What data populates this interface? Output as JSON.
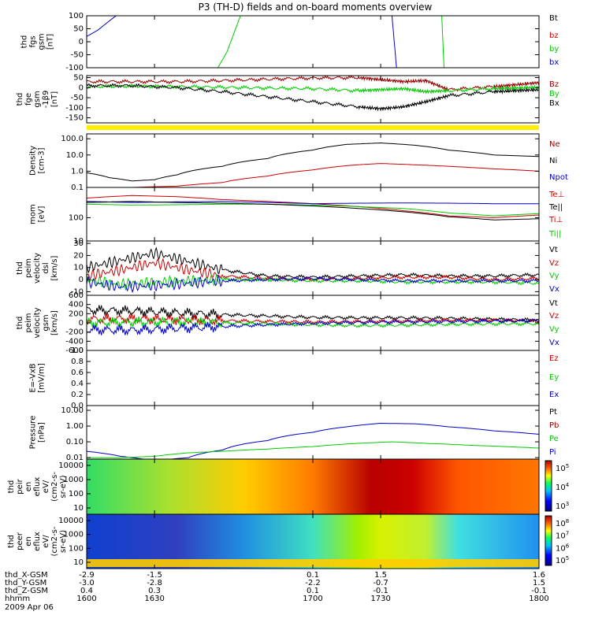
{
  "title": "P3 (TH-D) fields and on-board moments overview",
  "colors": {
    "black": "#000000",
    "red": "#cc0000",
    "green": "#00cc00",
    "blue": "#0000cc",
    "yellow": "#ffee00",
    "darkred": "#990000"
  },
  "chart_data": [
    {
      "type": "line",
      "panel": "fgs",
      "ylabel": [
        "thd",
        "fgs",
        "gsm",
        "[nT]"
      ],
      "yticks": [
        "100",
        "50",
        "0",
        "-50",
        "-100"
      ],
      "ylim": [
        -100,
        100
      ],
      "legend": [
        {
          "label": "Bt",
          "color": "black"
        },
        {
          "label": "bz",
          "color": "red"
        },
        {
          "label": "by",
          "color": "green"
        },
        {
          "label": "bx",
          "color": "blue"
        }
      ],
      "series": [
        {
          "name": "bx",
          "color": "blue",
          "x": [
            1600,
            1605,
            1610,
            1613
          ],
          "y": [
            20,
            45,
            80,
            100
          ]
        },
        {
          "name": "by",
          "color": "green",
          "x": [
            1658,
            1662,
            1668
          ],
          "y": [
            -100,
            -40,
            100
          ]
        },
        {
          "name": "bx",
          "color": "blue",
          "x": [
            1735,
            1737
          ],
          "y": [
            100,
            -100
          ]
        },
        {
          "name": "by",
          "color": "green",
          "x": [
            1757,
            1758
          ],
          "y": [
            100,
            -100
          ]
        }
      ]
    },
    {
      "type": "line",
      "panel": "fge",
      "ylabel": [
        "thd",
        "fge",
        "gsm",
        "-1β9",
        "[nT]"
      ],
      "yticks": [
        "50",
        "0",
        "-50",
        "-100",
        "-150"
      ],
      "ylim": [
        -175,
        60
      ],
      "legend": [
        {
          "label": "Bz",
          "color": "darkred"
        },
        {
          "label": "By",
          "color": "green"
        },
        {
          "label": "Bx",
          "color": "black"
        }
      ],
      "series": [
        {
          "name": "Bz",
          "color": "darkred",
          "x": [
            1600,
            1620,
            1640,
            1660,
            1680,
            1700,
            1720,
            1730,
            1740,
            1750,
            1760,
            1780,
            1790,
            1800
          ],
          "y": [
            30,
            30,
            30,
            35,
            42,
            48,
            50,
            40,
            30,
            35,
            -10,
            5,
            15,
            25
          ]
        },
        {
          "name": "By",
          "color": "green",
          "x": [
            1600,
            1620,
            1640,
            1660,
            1680,
            1700,
            1720,
            1730,
            1740,
            1750,
            1760,
            1780,
            1790,
            1800
          ],
          "y": [
            5,
            8,
            5,
            2,
            -2,
            -5,
            -15,
            -10,
            -5,
            -20,
            -15,
            -5,
            -2,
            2
          ]
        },
        {
          "name": "Bx",
          "color": "black",
          "x": [
            1600,
            1620,
            1640,
            1660,
            1680,
            1700,
            1720,
            1730,
            1740,
            1750,
            1760,
            1780,
            1790,
            1800
          ],
          "y": [
            10,
            10,
            0,
            -20,
            -45,
            -70,
            -95,
            -105,
            -95,
            -70,
            -40,
            -20,
            -15,
            -10
          ]
        }
      ]
    },
    {
      "type": "line",
      "panel": "density",
      "yscale": "log",
      "ylabel": [
        "Density",
        "[cm-3]"
      ],
      "yticks": [
        "100.0",
        "10.0",
        "1.0",
        "0.1"
      ],
      "ylim": [
        0.1,
        200
      ],
      "legend": [
        {
          "label": "Ne",
          "color": "darkred"
        },
        {
          "label": "Ni",
          "color": "black"
        },
        {
          "label": "Npot",
          "color": "blue"
        }
      ],
      "series": [
        {
          "name": "Ni",
          "color": "black",
          "x": [
            1600,
            1610,
            1620,
            1630,
            1640,
            1660,
            1680,
            1700,
            1715,
            1730,
            1745,
            1760,
            1780,
            1800
          ],
          "y": [
            0.8,
            0.4,
            0.25,
            0.3,
            0.6,
            2,
            6,
            20,
            45,
            55,
            40,
            20,
            10,
            8
          ]
        },
        {
          "name": "Ne",
          "color": "red",
          "x": [
            1600,
            1620,
            1640,
            1660,
            1680,
            1700,
            1720,
            1730,
            1745,
            1760,
            1780,
            1800
          ],
          "y": [
            0.1,
            0.1,
            0.12,
            0.2,
            0.5,
            1.2,
            2.5,
            3,
            2.5,
            2,
            1.4,
            1
          ]
        }
      ]
    },
    {
      "type": "line",
      "panel": "mom_temp",
      "yscale": "log",
      "ylabel": [
        "mom",
        "[eV]"
      ],
      "yticks": [
        "100",
        "10"
      ],
      "ylim": [
        10,
        2000
      ],
      "legend": [
        {
          "label": "Te⊥",
          "color": "red"
        },
        {
          "label": "Te||",
          "color": "black"
        },
        {
          "label": "Ti⊥",
          "color": "red"
        },
        {
          "label": "Ti||",
          "color": "green"
        }
      ],
      "series": [
        {
          "name": "Te⊥",
          "color": "red",
          "x": [
            1600,
            1620,
            1640,
            1660,
            1680,
            1700,
            1720,
            1740,
            1760,
            1780,
            1800
          ],
          "y": [
            700,
            900,
            800,
            600,
            500,
            400,
            300,
            200,
            120,
            100,
            130
          ]
        },
        {
          "name": "Ti⊥",
          "color": "blue",
          "x": [
            1600,
            1620,
            1640,
            1660,
            1680,
            1700,
            1720,
            1740,
            1760,
            1780,
            1800
          ],
          "y": [
            500,
            450,
            480,
            500,
            450,
            400,
            420,
            430,
            420,
            400,
            400
          ]
        },
        {
          "name": "Ti||",
          "color": "green",
          "x": [
            1600,
            1620,
            1640,
            1660,
            1680,
            1700,
            1720,
            1740,
            1760,
            1780,
            1800
          ],
          "y": [
            380,
            350,
            360,
            380,
            380,
            350,
            300,
            250,
            160,
            120,
            150
          ]
        },
        {
          "name": "Te||",
          "color": "black",
          "x": [
            1600,
            1620,
            1640,
            1660,
            1680,
            1700,
            1720,
            1740,
            1760,
            1780,
            1800
          ],
          "y": [
            450,
            500,
            450,
            420,
            380,
            320,
            250,
            180,
            110,
            80,
            90
          ]
        }
      ]
    },
    {
      "type": "line",
      "panel": "vel1",
      "ylabel": [
        "thd",
        "peim",
        "velocity",
        "dsl",
        "[km/s]"
      ],
      "yticks": [
        "30",
        "20",
        "10",
        "0",
        "-10"
      ],
      "ylim": [
        -13,
        32
      ],
      "legend": [
        {
          "label": "Vt",
          "color": "black"
        },
        {
          "label": "Vz",
          "color": "red"
        },
        {
          "label": "Vy",
          "color": "green"
        },
        {
          "label": "Vx",
          "color": "blue"
        }
      ],
      "series": [
        {
          "name": "Vt",
          "color": "black",
          "x": [
            1600,
            1615,
            1630,
            1645,
            1660,
            1680,
            1700,
            1720,
            1740,
            1760,
            1780,
            1800
          ],
          "y": [
            10,
            16,
            22,
            15,
            8,
            3,
            2,
            3,
            4,
            3,
            3,
            4
          ]
        },
        {
          "name": "Vz",
          "color": "red",
          "x": [
            1600,
            1615,
            1630,
            1645,
            1660,
            1680,
            1700,
            1720,
            1740,
            1760,
            1780,
            1800
          ],
          "y": [
            3,
            8,
            14,
            8,
            3,
            1,
            0,
            1,
            2,
            2,
            0,
            1
          ]
        },
        {
          "name": "Vy",
          "color": "green",
          "x": [
            1600,
            1615,
            1630,
            1645,
            1660,
            1680,
            1700,
            1720,
            1740,
            1760,
            1780,
            1800
          ],
          "y": [
            0,
            -4,
            -2,
            -1,
            0,
            0,
            -1,
            -1,
            -2,
            -2,
            -2,
            -3
          ]
        },
        {
          "name": "Vx",
          "color": "blue",
          "x": [
            1600,
            1615,
            1630,
            1645,
            1660,
            1680,
            1700,
            1720,
            1740,
            1760,
            1780,
            1800
          ],
          "y": [
            -2,
            -6,
            -5,
            -3,
            -1,
            0,
            1,
            0,
            -1,
            -1,
            -1,
            -1
          ]
        }
      ]
    },
    {
      "type": "line",
      "panel": "vel2",
      "ylabel": [
        "thd",
        "peim",
        "velocity",
        "gsm",
        "[km/s]"
      ],
      "yticks": [
        "600",
        "400",
        "200",
        "0",
        "-200",
        "-400",
        "-600"
      ],
      "ylim": [
        -600,
        600
      ],
      "legend": [
        {
          "label": "Vt",
          "color": "black"
        },
        {
          "label": "Vz",
          "color": "red"
        },
        {
          "label": "Vy",
          "color": "green"
        },
        {
          "label": "Vx",
          "color": "blue"
        }
      ],
      "series": [
        {
          "name": "Vt",
          "color": "black",
          "x": [
            1600,
            1620,
            1640,
            1660,
            1680,
            1700,
            1720,
            1740,
            1760,
            1780,
            1800
          ],
          "y": [
            280,
            260,
            220,
            180,
            150,
            120,
            110,
            110,
            100,
            80,
            60
          ]
        },
        {
          "name": "Vz",
          "color": "red",
          "x": [
            1600,
            1620,
            1640,
            1660,
            1680,
            1700,
            1720,
            1740,
            1760,
            1780,
            1800
          ],
          "y": [
            80,
            90,
            70,
            50,
            30,
            20,
            30,
            40,
            60,
            60,
            40
          ]
        },
        {
          "name": "Vy",
          "color": "green",
          "x": [
            1600,
            1620,
            1640,
            1660,
            1680,
            1700,
            1720,
            1740,
            1760,
            1780,
            1800
          ],
          "y": [
            0,
            20,
            20,
            0,
            -20,
            -40,
            -60,
            -50,
            -30,
            -20,
            -20
          ]
        },
        {
          "name": "Vx",
          "color": "blue",
          "x": [
            1600,
            1620,
            1640,
            1660,
            1680,
            1700,
            1720,
            1740,
            1760,
            1780,
            1800
          ],
          "y": [
            -150,
            -160,
            -120,
            -80,
            -40,
            -10,
            10,
            20,
            30,
            40,
            50
          ]
        }
      ]
    },
    {
      "type": "line",
      "panel": "efield",
      "ylabel": [
        "E=-VxB",
        "[mV/m]"
      ],
      "yticks": [
        "1.0",
        "0.8",
        "0.6",
        "0.4",
        "0.2",
        "0.0"
      ],
      "ylim": [
        0,
        1
      ],
      "legend": [
        {
          "label": "Ez",
          "color": "red"
        },
        {
          "label": "Ey",
          "color": "green"
        },
        {
          "label": "Ex",
          "color": "blue"
        }
      ],
      "series": []
    },
    {
      "type": "line",
      "panel": "pressure",
      "yscale": "log",
      "ylabel": [
        "Pressure",
        "[nPa]"
      ],
      "yticks": [
        "10.00",
        "1.00",
        "0.10",
        "0.01"
      ],
      "ylim": [
        0.008,
        20
      ],
      "legend": [
        {
          "label": "Pt",
          "color": "black"
        },
        {
          "label": "Pb",
          "color": "darkred"
        },
        {
          "label": "Pe",
          "color": "green"
        },
        {
          "label": "Pi",
          "color": "blue"
        }
      ],
      "series": [
        {
          "name": "Pi",
          "color": "blue",
          "x": [
            1600,
            1615,
            1630,
            1645,
            1660,
            1680,
            1700,
            1715,
            1730,
            1745,
            1760,
            1780,
            1800
          ],
          "y": [
            0.025,
            0.012,
            0.006,
            0.01,
            0.03,
            0.12,
            0.4,
            0.9,
            1.5,
            1.4,
            0.9,
            0.5,
            0.3
          ]
        },
        {
          "name": "Pe",
          "color": "green",
          "x": [
            1600,
            1615,
            1630,
            1645,
            1660,
            1680,
            1700,
            1720,
            1735,
            1750,
            1770,
            1800
          ],
          "y": [
            0.01,
            0.01,
            0.012,
            0.02,
            0.025,
            0.035,
            0.05,
            0.08,
            0.1,
            0.08,
            0.06,
            0.04
          ]
        }
      ]
    },
    {
      "type": "heatmap",
      "panel": "peir",
      "ylabel": [
        "thd",
        "peir",
        "en",
        "eflux",
        "eV/",
        "(cm2-s-",
        "sr-eV)"
      ],
      "yticks": [
        "10000",
        "1000",
        "100",
        "10"
      ],
      "colorbar_ticks": [
        "10^5",
        "10^4",
        "10^3"
      ]
    },
    {
      "type": "heatmap",
      "panel": "peer",
      "ylabel": [
        "thd",
        "peer",
        "en",
        "eflux",
        "eV/",
        "(cm2-s-",
        "sr-eV)"
      ],
      "yticks": [
        "10000",
        "1000",
        "100",
        "10"
      ],
      "colorbar_ticks": [
        "10^8",
        "10^7",
        "10^6",
        "10^5"
      ]
    }
  ],
  "xaxis": {
    "range": [
      1600,
      1800
    ],
    "rows": [
      {
        "label": "thd_X-GSM",
        "values": [
          "-2.9",
          "-1.5",
          "0.1",
          "1.5",
          "1.6"
        ]
      },
      {
        "label": "thd_Y-GSM",
        "values": [
          "-3.0",
          "-2.8",
          "-2.2",
          "-0.7",
          "1.5"
        ]
      },
      {
        "label": "thd_Z-GSM",
        "values": [
          "0.4",
          "0.3",
          "0.1",
          "-0.1",
          "-0.1"
        ]
      },
      {
        "label": "hhmm",
        "values": [
          "1600",
          "1630",
          "1700",
          "1730",
          "1800"
        ]
      }
    ],
    "tick_positions": [
      1600,
      1630,
      1700,
      1730,
      1800
    ],
    "date": "2009 Apr 06"
  }
}
